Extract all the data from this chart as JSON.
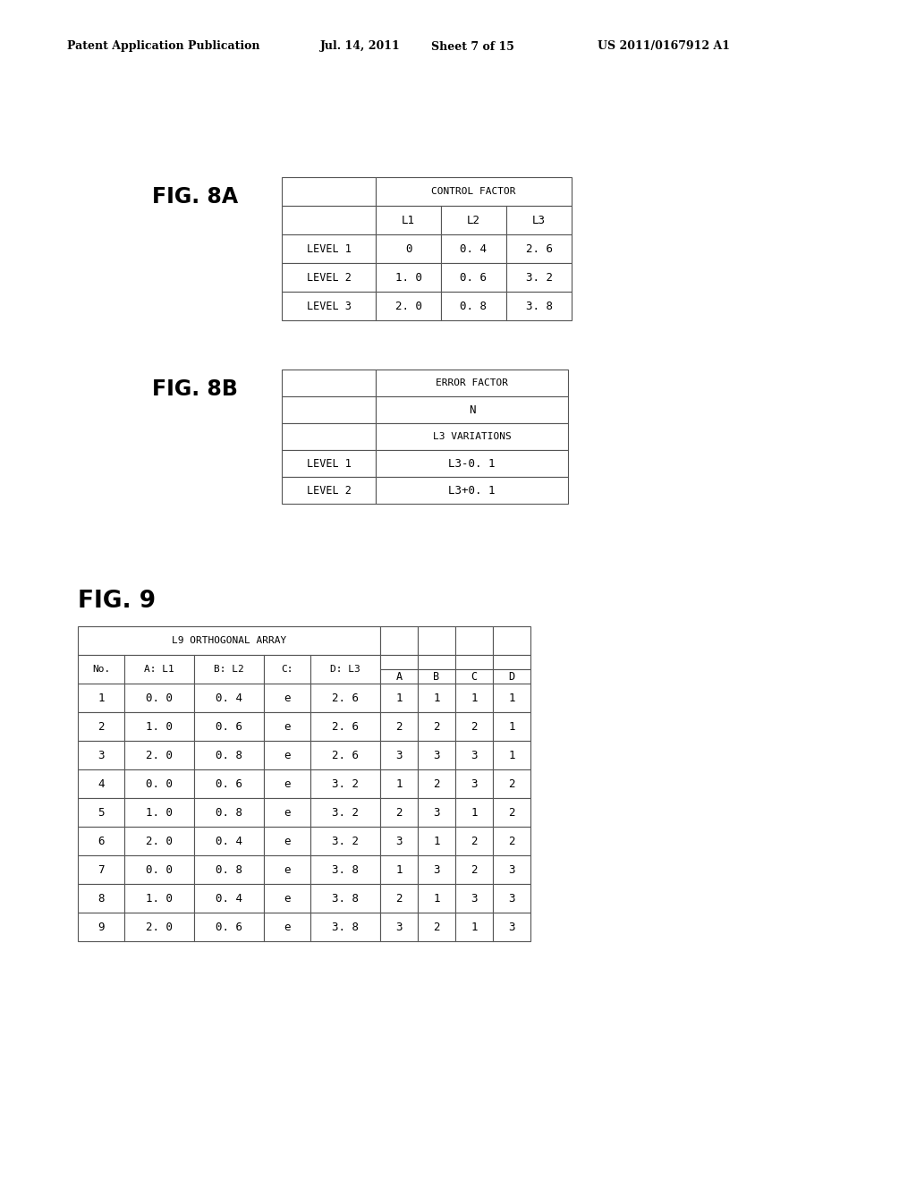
{
  "background_color": "#ffffff",
  "header_text": "Patent Application Publication",
  "header_date": "Jul. 14, 2011",
  "header_sheet": "Sheet 7 of 15",
  "header_patent": "US 2011/0167912 A1",
  "fig8a_label": "FIG. 8A",
  "fig8b_label": "FIG. 8B",
  "fig9_label": "FIG. 9",
  "fig8a_title": "CONTROL FACTOR",
  "fig8a_col_headers": [
    "L1",
    "L2",
    "L3"
  ],
  "fig8a_row_headers": [
    "LEVEL 1",
    "LEVEL 2",
    "LEVEL 3"
  ],
  "fig8a_data": [
    [
      "0",
      "0. 4",
      "2. 6"
    ],
    [
      "1. 0",
      "0. 6",
      "3. 2"
    ],
    [
      "2. 0",
      "0. 8",
      "3. 8"
    ]
  ],
  "fig8b_title": "ERROR FACTOR",
  "fig8b_sub1": "N",
  "fig8b_sub2": "L3 VARIATIONS",
  "fig8b_row_headers": [
    "LEVEL 1",
    "LEVEL 2"
  ],
  "fig8b_data": [
    "L3-0. 1",
    "L3+0. 1"
  ],
  "fig9_title": "L9 ORTHOGONAL ARRAY",
  "fig9_col_headers": [
    "No.",
    "A: L1",
    "B: L2",
    "C:",
    "D: L3",
    "A",
    "B",
    "C",
    "D"
  ],
  "fig9_data": [
    [
      "1",
      "0. 0",
      "0. 4",
      "e",
      "2. 6",
      "1",
      "1",
      "1",
      "1"
    ],
    [
      "2",
      "1. 0",
      "0. 6",
      "e",
      "2. 6",
      "2",
      "2",
      "2",
      "1"
    ],
    [
      "3",
      "2. 0",
      "0. 8",
      "e",
      "2. 6",
      "3",
      "3",
      "3",
      "1"
    ],
    [
      "4",
      "0. 0",
      "0. 6",
      "e",
      "3. 2",
      "1",
      "2",
      "3",
      "2"
    ],
    [
      "5",
      "1. 0",
      "0. 8",
      "e",
      "3. 2",
      "2",
      "3",
      "1",
      "2"
    ],
    [
      "6",
      "2. 0",
      "0. 4",
      "e",
      "3. 2",
      "3",
      "1",
      "2",
      "2"
    ],
    [
      "7",
      "0. 0",
      "0. 8",
      "e",
      "3. 8",
      "1",
      "3",
      "2",
      "3"
    ],
    [
      "8",
      "1. 0",
      "0. 4",
      "e",
      "3. 8",
      "2",
      "1",
      "3",
      "3"
    ],
    [
      "9",
      "2. 0",
      "0. 6",
      "e",
      "3. 8",
      "3",
      "2",
      "1",
      "3"
    ]
  ]
}
